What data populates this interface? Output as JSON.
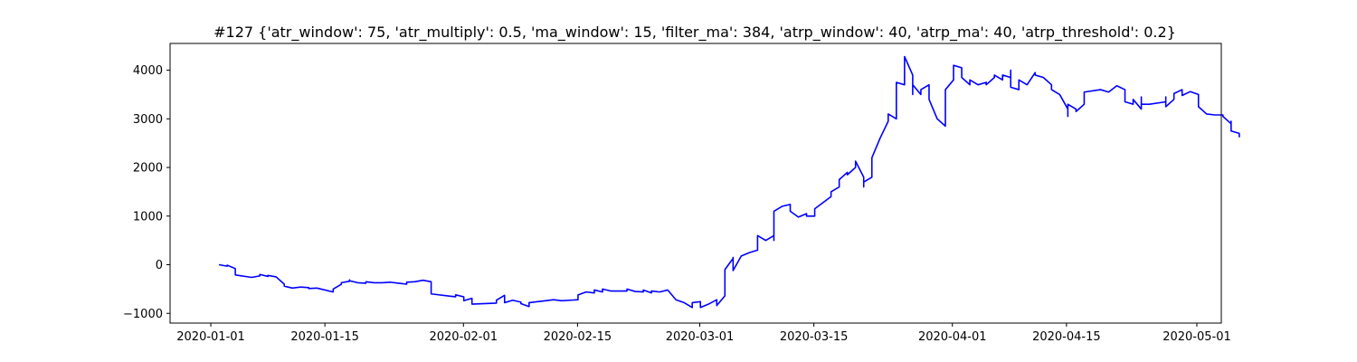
{
  "chart_data": {
    "type": "line",
    "title": "#127 {'atr_window': 75, 'atr_multiply': 0.5, 'ma_window': 15, 'filter_ma': 384, 'atrp_window': 40, 'atrp_ma': 40, 'atrp_threshold': 0.2}",
    "xlabel": "",
    "ylabel": "",
    "xlim": [
      "2019-12-27",
      "2020-05-04"
    ],
    "ylim": [
      -1200,
      4550
    ],
    "grid": false,
    "x_ticks": [
      "2020-01-01",
      "2020-01-15",
      "2020-02-01",
      "2020-02-15",
      "2020-03-01",
      "2020-03-15",
      "2020-04-01",
      "2020-04-15",
      "2020-05-01"
    ],
    "y_ticks": [
      -1000,
      0,
      1000,
      2000,
      3000,
      4000
    ],
    "series": [
      {
        "color": "#0000ff",
        "points": [
          [
            "2020-01-02",
            0
          ],
          [
            "2020-01-02",
            0
          ],
          [
            "2020-01-03",
            -30
          ],
          [
            "2020-01-03",
            -10
          ],
          [
            "2020-01-04",
            -80
          ],
          [
            "2020-01-04",
            -180
          ],
          [
            "2020-01-04",
            -210
          ],
          [
            "2020-01-06",
            -260
          ],
          [
            "2020-01-07",
            -230
          ],
          [
            "2020-01-07",
            -200
          ],
          [
            "2020-01-08",
            -240
          ],
          [
            "2020-01-08",
            -220
          ],
          [
            "2020-01-09",
            -250
          ],
          [
            "2020-01-10",
            -400
          ],
          [
            "2020-01-10",
            -440
          ],
          [
            "2020-01-11",
            -480
          ],
          [
            "2020-01-12",
            -460
          ],
          [
            "2020-01-13",
            -470
          ],
          [
            "2020-01-13",
            -490
          ],
          [
            "2020-01-14",
            -480
          ],
          [
            "2020-01-16",
            -560
          ],
          [
            "2020-01-16",
            -500
          ],
          [
            "2020-01-17",
            -400
          ],
          [
            "2020-01-17",
            -370
          ],
          [
            "2020-01-18",
            -340
          ],
          [
            "2020-01-18",
            -310
          ],
          [
            "2020-01-18",
            -330
          ],
          [
            "2020-01-19",
            -370
          ],
          [
            "2020-01-20",
            -380
          ],
          [
            "2020-01-20",
            -350
          ],
          [
            "2020-01-21",
            -370
          ],
          [
            "2020-01-22",
            -370
          ],
          [
            "2020-01-23",
            -360
          ],
          [
            "2020-01-24",
            -380
          ],
          [
            "2020-01-25",
            -400
          ],
          [
            "2020-01-25",
            -360
          ],
          [
            "2020-01-26",
            -350
          ],
          [
            "2020-01-27",
            -320
          ],
          [
            "2020-01-28",
            -350
          ],
          [
            "2020-01-28",
            -600
          ],
          [
            "2020-01-30",
            -640
          ],
          [
            "2020-01-31",
            -660
          ],
          [
            "2020-01-31",
            -620
          ],
          [
            "2020-02-01",
            -660
          ],
          [
            "2020-02-01",
            -740
          ],
          [
            "2020-02-02",
            -690
          ],
          [
            "2020-02-02",
            -810
          ],
          [
            "2020-02-05",
            -790
          ],
          [
            "2020-02-05",
            -730
          ],
          [
            "2020-02-06",
            -630
          ],
          [
            "2020-02-06",
            -780
          ],
          [
            "2020-02-07",
            -730
          ],
          [
            "2020-02-08",
            -770
          ],
          [
            "2020-02-08",
            -800
          ],
          [
            "2020-02-09",
            -860
          ],
          [
            "2020-02-09",
            -780
          ],
          [
            "2020-02-11",
            -740
          ],
          [
            "2020-02-12",
            -720
          ],
          [
            "2020-02-13",
            -740
          ],
          [
            "2020-02-15",
            -720
          ],
          [
            "2020-02-15",
            -620
          ],
          [
            "2020-02-16",
            -560
          ],
          [
            "2020-02-17",
            -580
          ],
          [
            "2020-02-17",
            -520
          ],
          [
            "2020-02-18",
            -560
          ],
          [
            "2020-02-18",
            -500
          ],
          [
            "2020-02-19",
            -540
          ],
          [
            "2020-02-21",
            -540
          ],
          [
            "2020-02-21",
            -500
          ],
          [
            "2020-02-22",
            -550
          ],
          [
            "2020-02-23",
            -560
          ],
          [
            "2020-02-23",
            -520
          ],
          [
            "2020-02-24",
            -580
          ],
          [
            "2020-02-24",
            -540
          ],
          [
            "2020-02-25",
            -560
          ],
          [
            "2020-02-26",
            -520
          ],
          [
            "2020-02-27",
            -720
          ],
          [
            "2020-02-28",
            -780
          ],
          [
            "2020-02-29",
            -880
          ],
          [
            "2020-02-29",
            -780
          ],
          [
            "2020-03-01",
            -760
          ],
          [
            "2020-03-01",
            -880
          ],
          [
            "2020-03-02",
            -810
          ],
          [
            "2020-03-03",
            -720
          ],
          [
            "2020-03-03",
            -780
          ],
          [
            "2020-03-03",
            -840
          ],
          [
            "2020-03-04",
            -640
          ],
          [
            "2020-03-04",
            -400
          ],
          [
            "2020-03-04",
            -100
          ],
          [
            "2020-03-05",
            130
          ],
          [
            "2020-03-05",
            150
          ],
          [
            "2020-03-05",
            -120
          ],
          [
            "2020-03-06",
            180
          ],
          [
            "2020-03-07",
            250
          ],
          [
            "2020-03-08",
            300
          ],
          [
            "2020-03-08",
            400
          ],
          [
            "2020-03-08",
            600
          ],
          [
            "2020-03-09",
            500
          ],
          [
            "2020-03-10",
            600
          ],
          [
            "2020-03-10",
            500
          ],
          [
            "2020-03-10",
            1100
          ],
          [
            "2020-03-11",
            1200
          ],
          [
            "2020-03-12",
            1240
          ],
          [
            "2020-03-12",
            1100
          ],
          [
            "2020-03-13",
            980
          ],
          [
            "2020-03-14",
            1050
          ],
          [
            "2020-03-14",
            1000
          ],
          [
            "2020-03-15",
            1000
          ],
          [
            "2020-03-15",
            1150
          ],
          [
            "2020-03-17",
            1400
          ],
          [
            "2020-03-17",
            1500
          ],
          [
            "2020-03-18",
            1600
          ],
          [
            "2020-03-18",
            1750
          ],
          [
            "2020-03-19",
            1900
          ],
          [
            "2020-03-19",
            1850
          ],
          [
            "2020-03-20",
            2000
          ],
          [
            "2020-03-20",
            2130
          ],
          [
            "2020-03-21",
            1800
          ],
          [
            "2020-03-21",
            1600
          ],
          [
            "2020-03-21",
            1700
          ],
          [
            "2020-03-22",
            1800
          ],
          [
            "2020-03-22",
            1900
          ],
          [
            "2020-03-22",
            2200
          ],
          [
            "2020-03-23",
            2600
          ],
          [
            "2020-03-24",
            2950
          ],
          [
            "2020-03-24",
            3100
          ],
          [
            "2020-03-25",
            3000
          ],
          [
            "2020-03-25",
            3700
          ],
          [
            "2020-03-25",
            3750
          ],
          [
            "2020-03-26",
            3700
          ],
          [
            "2020-03-26",
            3900
          ],
          [
            "2020-03-26",
            4280
          ],
          [
            "2020-03-27",
            3900
          ],
          [
            "2020-03-27",
            3500
          ],
          [
            "2020-03-27",
            3700
          ],
          [
            "2020-03-28",
            3500
          ],
          [
            "2020-03-28",
            3600
          ],
          [
            "2020-03-29",
            3700
          ],
          [
            "2020-03-29",
            3400
          ],
          [
            "2020-03-30",
            3000
          ],
          [
            "2020-03-31",
            2850
          ],
          [
            "2020-03-31",
            3100
          ],
          [
            "2020-03-31",
            3600
          ],
          [
            "2020-04-01",
            3800
          ],
          [
            "2020-04-01",
            3900
          ],
          [
            "2020-04-01",
            4100
          ],
          [
            "2020-04-02",
            4050
          ],
          [
            "2020-04-02",
            3850
          ],
          [
            "2020-04-03",
            3700
          ],
          [
            "2020-04-03",
            3800
          ],
          [
            "2020-04-04",
            3700
          ],
          [
            "2020-04-05",
            3750
          ],
          [
            "2020-04-05",
            3700
          ],
          [
            "2020-04-06",
            3850
          ],
          [
            "2020-04-06",
            3900
          ],
          [
            "2020-04-07",
            3800
          ],
          [
            "2020-04-07",
            3900
          ],
          [
            "2020-04-08",
            3850
          ],
          [
            "2020-04-08",
            4000
          ],
          [
            "2020-04-08",
            3650
          ],
          [
            "2020-04-09",
            3600
          ],
          [
            "2020-04-09",
            3800
          ],
          [
            "2020-04-10",
            3700
          ],
          [
            "2020-04-11",
            3950
          ],
          [
            "2020-04-11",
            3900
          ],
          [
            "2020-04-12",
            3850
          ],
          [
            "2020-04-13",
            3700
          ],
          [
            "2020-04-13",
            3600
          ],
          [
            "2020-04-14",
            3500
          ],
          [
            "2020-04-15",
            3200
          ],
          [
            "2020-04-15",
            3050
          ],
          [
            "2020-04-15",
            3300
          ],
          [
            "2020-04-16",
            3200
          ],
          [
            "2020-04-16",
            3150
          ],
          [
            "2020-04-17",
            3300
          ],
          [
            "2020-04-17",
            3550
          ],
          [
            "2020-04-19",
            3600
          ],
          [
            "2020-04-20",
            3550
          ],
          [
            "2020-04-21",
            3680
          ],
          [
            "2020-04-22",
            3600
          ],
          [
            "2020-04-22",
            3350
          ],
          [
            "2020-04-23",
            3300
          ],
          [
            "2020-04-23",
            3400
          ],
          [
            "2020-04-24",
            3200
          ],
          [
            "2020-04-24",
            3450
          ],
          [
            "2020-04-24",
            3300
          ],
          [
            "2020-04-25",
            3300
          ],
          [
            "2020-04-27",
            3350
          ],
          [
            "2020-04-27",
            3450
          ],
          [
            "2020-04-27",
            3250
          ],
          [
            "2020-04-28",
            3400
          ],
          [
            "2020-04-28",
            3520
          ],
          [
            "2020-04-29",
            3600
          ],
          [
            "2020-04-29",
            3480
          ],
          [
            "2020-04-30",
            3560
          ],
          [
            "2020-05-01",
            3500
          ],
          [
            "2020-05-01",
            3250
          ],
          [
            "2020-05-02",
            3100
          ],
          [
            "2020-05-03",
            3080
          ],
          [
            "2020-05-04",
            3080
          ],
          [
            "2020-05-04",
            3050
          ],
          [
            "2020-05-05",
            2900
          ],
          [
            "2020-05-05",
            2950
          ],
          [
            "2020-05-05",
            2750
          ],
          [
            "2020-05-06",
            2700
          ],
          [
            "2020-05-06",
            2620
          ]
        ]
      }
    ]
  }
}
